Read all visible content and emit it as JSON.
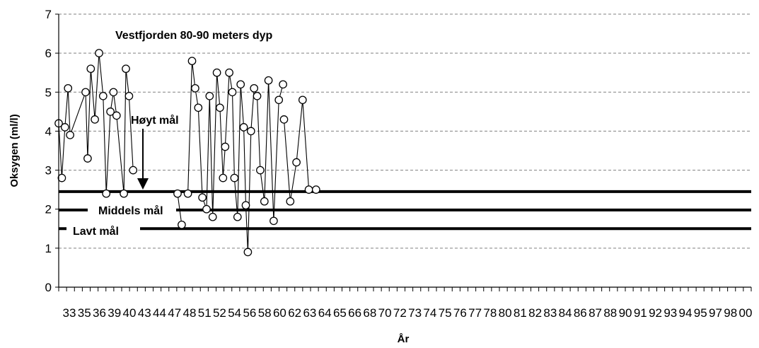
{
  "chart_data": {
    "type": "line",
    "title": "Vestfjorden 80-90 meters dyp",
    "xlabel": "År",
    "ylabel": "Oksygen (ml/l)",
    "ylim": [
      0,
      7
    ],
    "yticks": [
      "0",
      "1",
      "2",
      "3",
      "4",
      "5",
      "6",
      "7"
    ],
    "xticks": [
      "33",
      "35",
      "36",
      "39",
      "40",
      "43",
      "44",
      "47",
      "48",
      "51",
      "52",
      "54",
      "56",
      "58",
      "60",
      "62",
      "63",
      "64",
      "65",
      "66",
      "68",
      "70",
      "72",
      "73",
      "74",
      "75",
      "76",
      "77",
      "78",
      "80",
      "81",
      "82",
      "83",
      "84",
      "86",
      "87",
      "88",
      "90",
      "91",
      "92",
      "93",
      "94",
      "95",
      "97",
      "98",
      "00"
    ],
    "grid": "horizontal dashed",
    "reference_lines": [
      {
        "label": "Høyt mål",
        "y": 2.45
      },
      {
        "label": "Middels mål",
        "y": 1.98
      },
      {
        "label": "Lavt mål",
        "y": 1.5
      }
    ],
    "series": [
      {
        "marker": "open-circle",
        "segments": [
          {
            "x": [
              33.0,
              33.3,
              33.6,
              33.9,
              34.1,
              35.6,
              35.8,
              36.1,
              36.5,
              36.9,
              37.3,
              37.6,
              38.0,
              38.3,
              38.6,
              39.3,
              39.5,
              39.8,
              40.2
            ],
            "y": [
              4.2,
              2.8,
              4.1,
              5.1,
              3.9,
              5.0,
              3.3,
              5.6,
              4.3,
              6.0,
              4.9,
              2.4,
              4.5,
              5.0,
              4.4,
              2.4,
              5.6,
              4.9,
              3.0
            ]
          },
          {
            "x": [
              44.5,
              44.9
            ],
            "y": [
              2.4,
              1.6
            ]
          },
          {
            "x": [
              45.5,
              45.9,
              46.2,
              46.5,
              46.9,
              47.3,
              47.6,
              47.9,
              48.3,
              48.6,
              48.9,
              49.1,
              49.5,
              49.8,
              50.0,
              50.3,
              50.6,
              50.9,
              51.1,
              51.3,
              51.6,
              51.9,
              52.2,
              52.5,
              52.9,
              53.3,
              53.8,
              54.3,
              54.7
            ],
            "y": [
              2.4,
              5.8,
              5.1,
              4.6,
              2.3,
              2.0,
              4.9,
              1.8,
              5.5,
              4.6,
              2.8,
              3.6,
              5.5,
              5.0,
              2.8,
              1.8,
              5.2,
              4.1,
              2.1,
              0.9,
              4.0,
              5.1,
              4.9,
              3.0,
              2.2,
              5.3,
              1.7,
              4.8,
              5.2
            ]
          },
          {
            "x": [
              54.8,
              55.4,
              56.0,
              56.6,
              57.2,
              57.9
            ],
            "y": [
              4.3,
              2.2,
              3.2,
              4.8,
              2.5,
              2.5
            ]
          }
        ]
      }
    ]
  }
}
